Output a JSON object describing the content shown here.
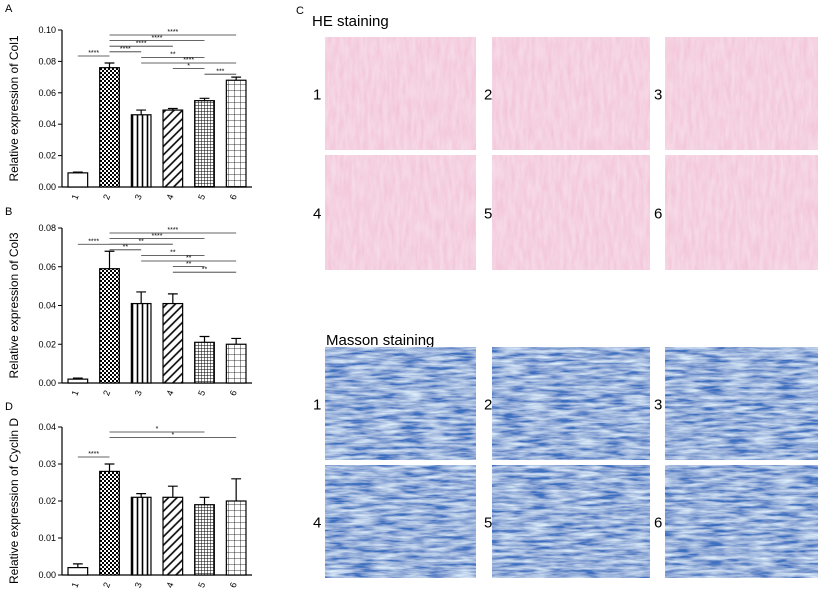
{
  "chart_data": [
    {
      "type": "bar",
      "label": "A",
      "ylabel": "Relative expression of Col1",
      "categories": [
        "1",
        "2",
        "3",
        "4",
        "5",
        "6"
      ],
      "values": [
        0.009,
        0.076,
        0.046,
        0.049,
        0.055,
        0.068
      ],
      "errors": [
        0.0005,
        0.003,
        0.003,
        0.001,
        0.0015,
        0.002
      ],
      "ylim": [
        0,
        0.1
      ],
      "yticks": [
        {
          "value": 0,
          "label": "0.00"
        },
        {
          "value": 0.02,
          "label": "0.02"
        },
        {
          "value": 0.04,
          "label": "0.04"
        },
        {
          "value": 0.06,
          "label": "0.06"
        },
        {
          "value": 0.08,
          "label": "0.08"
        },
        {
          "value": 0.1,
          "label": "0.10"
        }
      ],
      "significance": [
        {
          "from": 0,
          "to": 1,
          "label": "****"
        },
        {
          "from": 1,
          "to": 5,
          "label": "****"
        },
        {
          "from": 1,
          "to": 4,
          "label": "****"
        },
        {
          "from": 1,
          "to": 3,
          "label": "****"
        },
        {
          "from": 1,
          "to": 2,
          "label": "****"
        },
        {
          "from": 2,
          "to": 4,
          "label": "**"
        },
        {
          "from": 2,
          "to": 5,
          "label": "****"
        },
        {
          "from": 3,
          "to": 4,
          "label": "*"
        },
        {
          "from": 4,
          "to": 5,
          "label": "***"
        }
      ]
    },
    {
      "type": "bar",
      "label": "B",
      "ylabel": "Relative expression of Col3",
      "categories": [
        "1",
        "2",
        "3",
        "4",
        "5",
        "6"
      ],
      "values": [
        0.002,
        0.059,
        0.041,
        0.041,
        0.021,
        0.02
      ],
      "errors": [
        0.0005,
        0.009,
        0.006,
        0.005,
        0.003,
        0.003
      ],
      "ylim": [
        0,
        0.08
      ],
      "yticks": [
        {
          "value": 0,
          "label": "0.00"
        },
        {
          "value": 0.02,
          "label": "0.02"
        },
        {
          "value": 0.04,
          "label": "0.04"
        },
        {
          "value": 0.06,
          "label": "0.06"
        },
        {
          "value": 0.08,
          "label": "0.08"
        }
      ],
      "significance": [
        {
          "from": 0,
          "to": 1,
          "label": "****"
        },
        {
          "from": 1,
          "to": 5,
          "label": "****"
        },
        {
          "from": 1,
          "to": 4,
          "label": "****"
        },
        {
          "from": 1,
          "to": 3,
          "label": "**"
        },
        {
          "from": 1,
          "to": 2,
          "label": "**"
        },
        {
          "from": 2,
          "to": 4,
          "label": "**"
        },
        {
          "from": 2,
          "to": 5,
          "label": "**"
        },
        {
          "from": 3,
          "to": 4,
          "label": "**"
        },
        {
          "from": 3,
          "to": 5,
          "label": "**"
        }
      ]
    },
    {
      "type": "bar",
      "label": "D",
      "ylabel": "Relative expression of Cyclin D",
      "categories": [
        "1",
        "2",
        "3",
        "4",
        "5",
        "6"
      ],
      "values": [
        0.002,
        0.028,
        0.021,
        0.021,
        0.019,
        0.02
      ],
      "errors": [
        0.001,
        0.002,
        0.001,
        0.003,
        0.002,
        0.006
      ],
      "ylim": [
        0,
        0.04
      ],
      "yticks": [
        {
          "value": 0,
          "label": "0.00"
        },
        {
          "value": 0.01,
          "label": "0.01"
        },
        {
          "value": 0.02,
          "label": "0.02"
        },
        {
          "value": 0.03,
          "label": "0.03"
        },
        {
          "value": 0.04,
          "label": "0.04"
        }
      ],
      "significance": [
        {
          "from": 0,
          "to": 1,
          "label": "****"
        },
        {
          "from": 1,
          "to": 4,
          "label": "*"
        },
        {
          "from": 1,
          "to": 5,
          "label": "*"
        }
      ]
    }
  ],
  "images": {
    "label": "C",
    "he_title": "HE staining",
    "masson_title": "Masson staining",
    "he_numbers": [
      "1",
      "2",
      "3",
      "4",
      "5",
      "6"
    ],
    "masson_numbers": [
      "1",
      "2",
      "3",
      "4",
      "5",
      "6"
    ]
  }
}
